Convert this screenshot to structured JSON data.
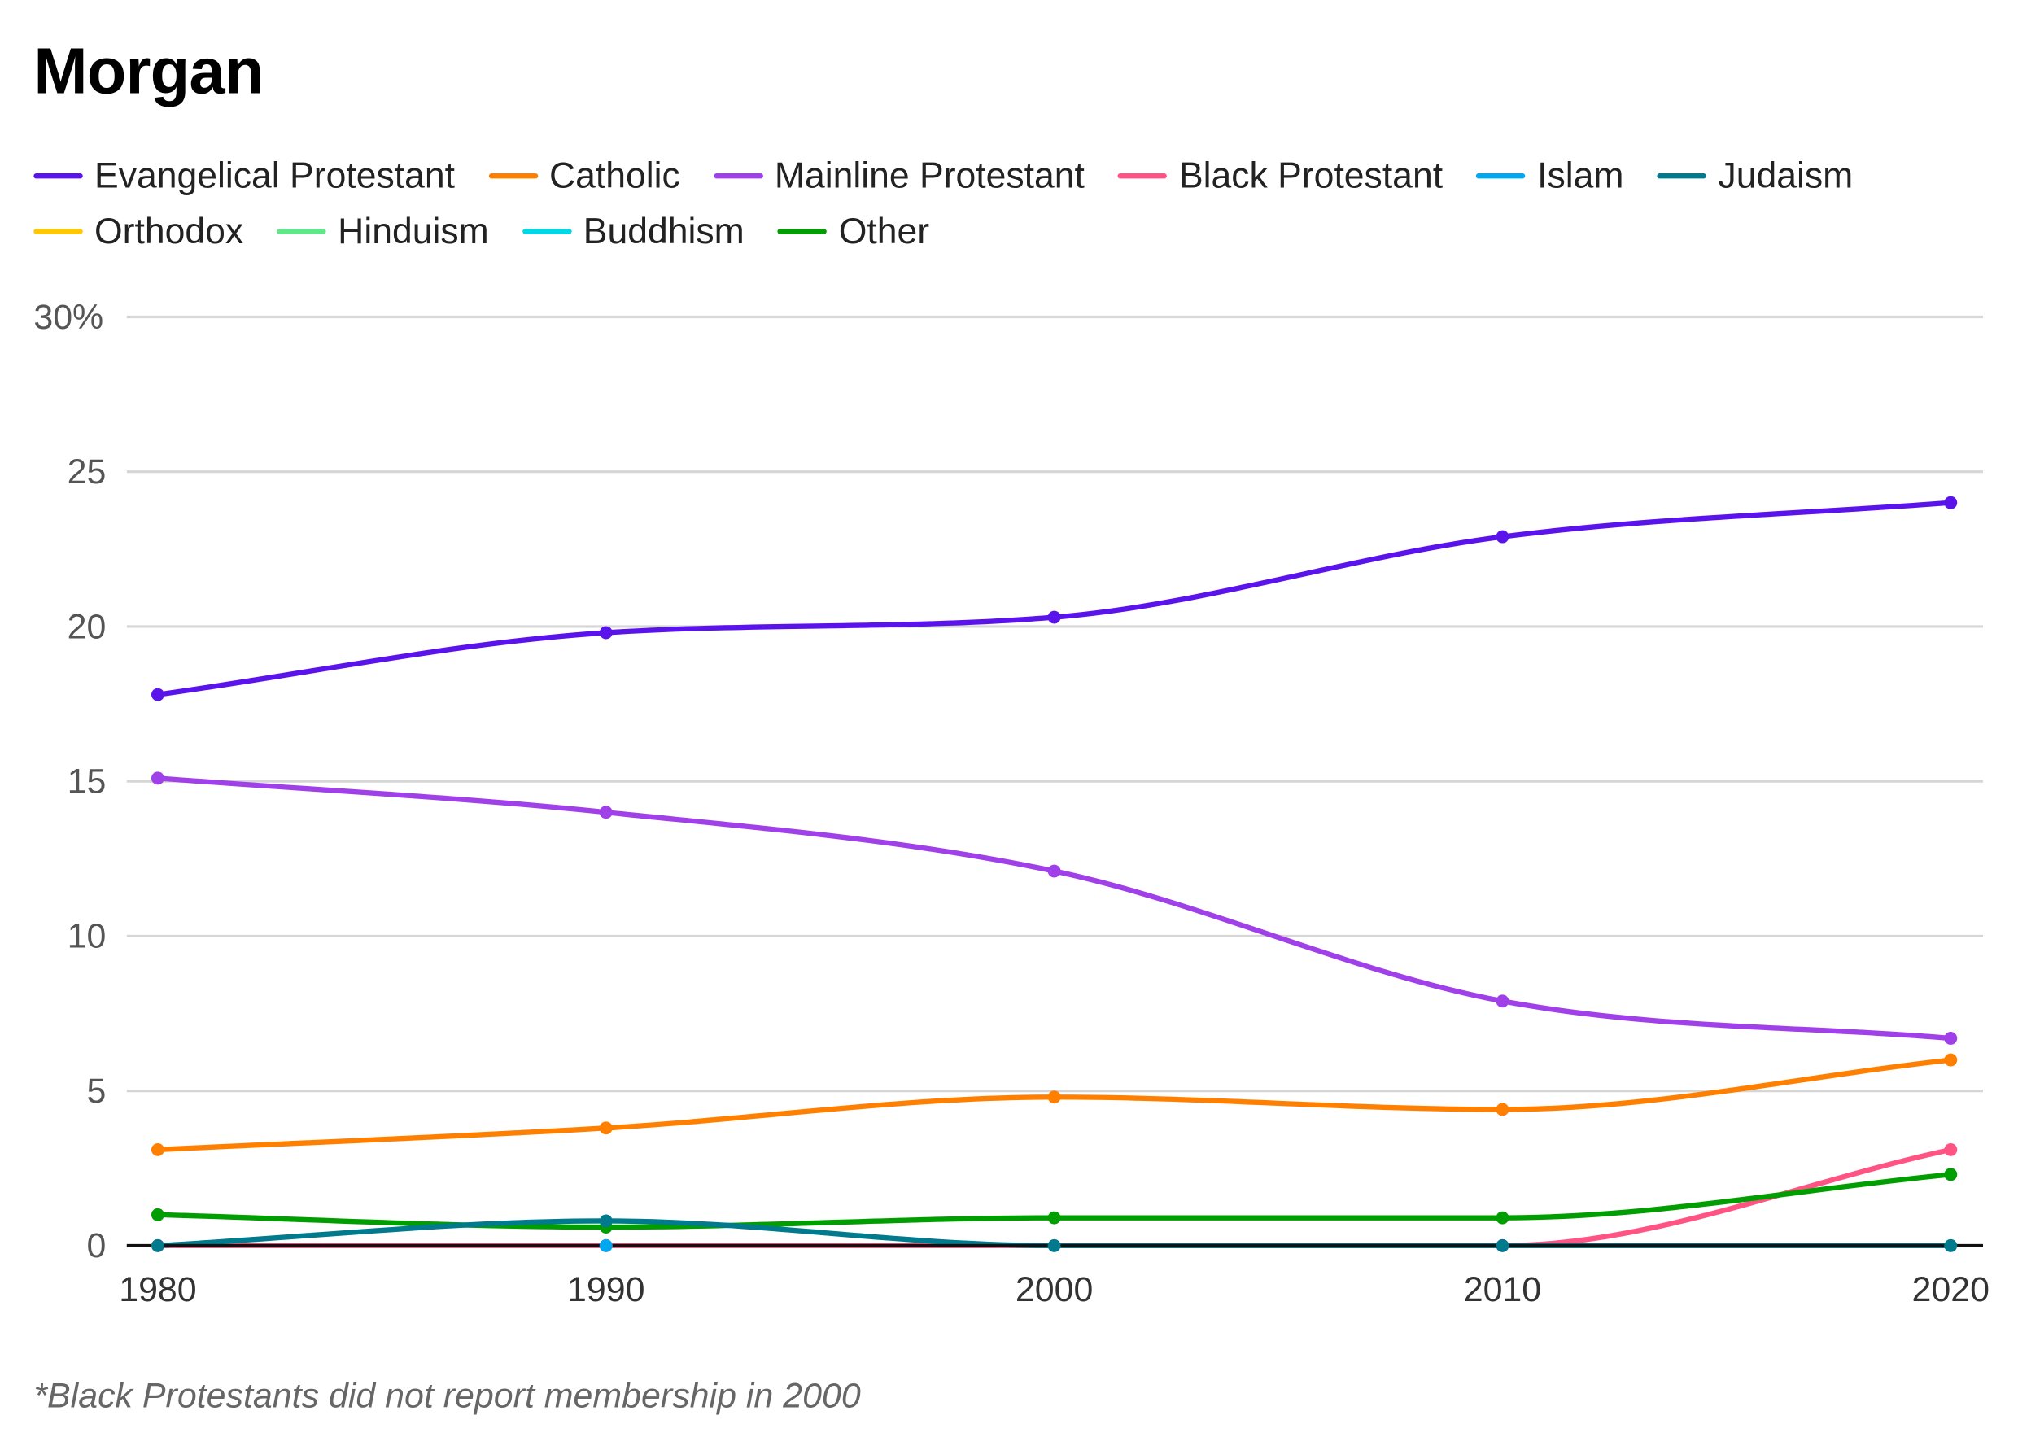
{
  "chart_data": {
    "type": "line",
    "title": "Morgan",
    "x": [
      1980,
      1990,
      2000,
      2010,
      2020
    ],
    "x_tick_labels": [
      "1980",
      "1990",
      "2000",
      "2010",
      "2020"
    ],
    "y_tick_labels": [
      "0",
      "5",
      "10",
      "15",
      "20",
      "25",
      "30%"
    ],
    "y_ticks": [
      0,
      5,
      10,
      15,
      20,
      25,
      30
    ],
    "ylim": [
      0,
      30
    ],
    "xlim": [
      1980,
      2020
    ],
    "grid": "horizontal",
    "legend_position": "top",
    "smooth": true,
    "series": [
      {
        "name": "Evangelical Protestant",
        "color": "#5b13ec",
        "values": [
          17.8,
          19.8,
          20.3,
          22.9,
          24.0
        ]
      },
      {
        "name": "Catholic",
        "color": "#ff8000",
        "values": [
          3.1,
          3.8,
          4.8,
          4.4,
          6.0
        ]
      },
      {
        "name": "Mainline Protestant",
        "color": "#a040e8",
        "values": [
          15.1,
          14.0,
          12.1,
          7.9,
          6.7
        ]
      },
      {
        "name": "Black Protestant",
        "color": "#ff5383",
        "values": [
          0,
          0,
          null,
          0,
          3.1
        ]
      },
      {
        "name": "Islam",
        "color": "#00a8f0",
        "values": [
          null,
          0,
          null,
          null,
          null
        ]
      },
      {
        "name": "Judaism",
        "color": "#007a8c",
        "values": [
          0,
          0.8,
          0,
          0,
          0
        ]
      },
      {
        "name": "Orthodox",
        "color": "#ffc800",
        "values": [
          null,
          null,
          null,
          null,
          null
        ]
      },
      {
        "name": "Hinduism",
        "color": "#5ee88a",
        "values": [
          null,
          null,
          null,
          null,
          null
        ]
      },
      {
        "name": "Buddhism",
        "color": "#00d8e8",
        "values": [
          null,
          null,
          null,
          null,
          null
        ]
      },
      {
        "name": "Other",
        "color": "#009e00",
        "values": [
          1.0,
          0.6,
          0.9,
          0.9,
          2.3
        ]
      }
    ],
    "footnote": "*Black Protestants did not report membership in 2000"
  }
}
